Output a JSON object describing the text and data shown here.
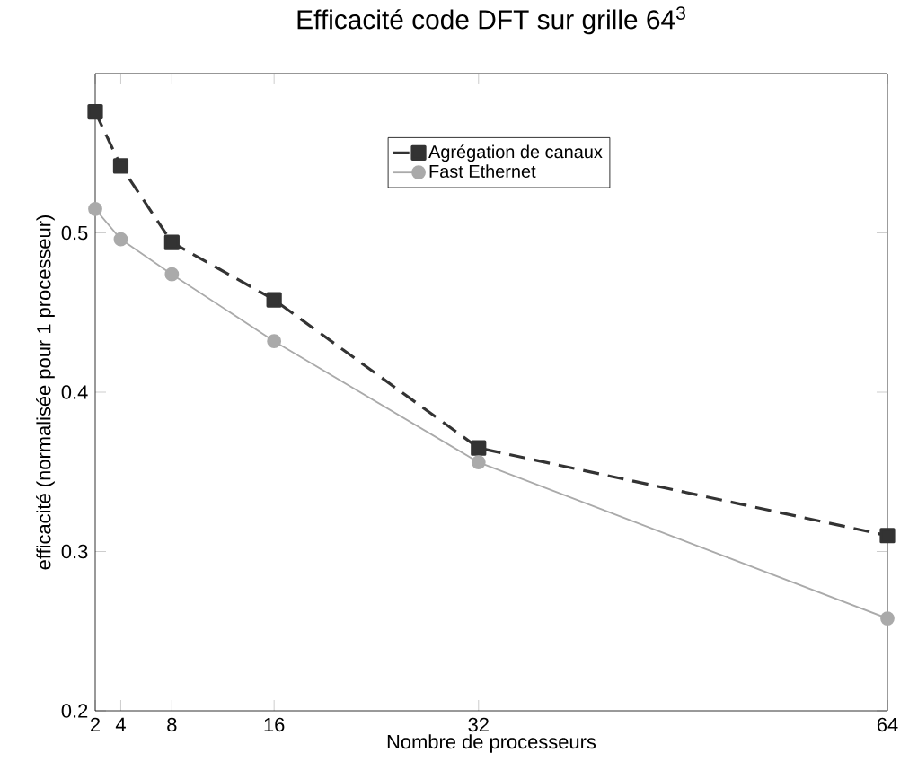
{
  "chart_data": {
    "type": "line",
    "title": "Efficacité code  DFT sur grille 64$^{3}$",
    "xlabel": "Nombre de processeurs",
    "ylabel": "efficacité (normalisée pour 1 processeur)",
    "x": [
      2,
      4,
      8,
      16,
      32,
      64
    ],
    "series": [
      {
        "name": "Agrégation de canaux",
        "color": "#333333",
        "values": [
          0.576,
          0.542,
          0.494,
          0.458,
          0.365,
          0.31
        ],
        "marker": "square",
        "line_style": "dashed"
      },
      {
        "name": "Fast Ethernet",
        "color": "#aaaaaa",
        "values": [
          0.515,
          0.496,
          0.474,
          0.432,
          0.356,
          0.258
        ],
        "marker": "circle",
        "line_style": "solid"
      }
    ],
    "xlim": [
      2,
      64
    ],
    "ylim": [
      0.2,
      0.6
    ],
    "xticks": [
      2,
      4,
      8,
      16,
      32,
      64
    ],
    "yticks": [
      0.2,
      0.3,
      0.4,
      0.5
    ],
    "grid": false,
    "legend": "top"
  }
}
